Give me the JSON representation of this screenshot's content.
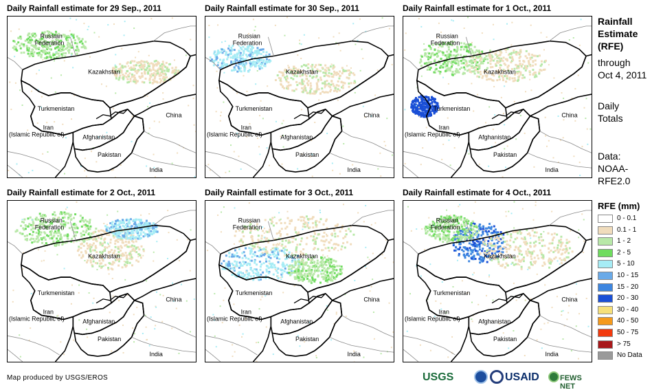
{
  "panels": [
    {
      "title": "Daily Rainfall estimate for 29 Sep., 2011",
      "variant": 0
    },
    {
      "title": "Daily Rainfall estimate for 30 Sep., 2011",
      "variant": 1
    },
    {
      "title": "Daily Rainfall estimate for 1 Oct., 2011",
      "variant": 2
    },
    {
      "title": "Daily Rainfall estimate for 2 Oct., 2011",
      "variant": 3
    },
    {
      "title": "Daily Rainfall estimate for 3 Oct., 2011",
      "variant": 4
    },
    {
      "title": "Daily Rainfall estimate for 4 Oct., 2011",
      "variant": 5
    }
  ],
  "labels": {
    "russia1": "Russian",
    "russia2": "Federation",
    "kazakhstan": "Kazakhstan",
    "turkmenistan": "Turkmenistan",
    "china": "China",
    "iran1": "Iran",
    "iran2": "(Islamic Republic of)",
    "afghanistan": "Afghanistan",
    "pakistan": "Pakistan",
    "india": "India"
  },
  "sidebar": {
    "title_line1": "Rainfall",
    "title_line2": "Estimate",
    "title_line3": "(RFE)",
    "through1": "through",
    "through2": "Oct 4, 2011",
    "daily1": "Daily",
    "daily2": "Totals",
    "data1": "Data:",
    "data2": "NOAA-",
    "data3": "RFE2.0"
  },
  "legend": {
    "title": "RFE (mm)",
    "items": [
      {
        "label": "0 - 0.1",
        "color": "#ffffff"
      },
      {
        "label": "0.1 - 1",
        "color": "#f0dcbc"
      },
      {
        "label": "1 - 2",
        "color": "#b8e8a8"
      },
      {
        "label": "2 - 5",
        "color": "#6fdc5f"
      },
      {
        "label": "5 - 10",
        "color": "#a6ecf5"
      },
      {
        "label": "10 - 15",
        "color": "#6aaae8"
      },
      {
        "label": "15 - 20",
        "color": "#3d86e0"
      },
      {
        "label": "20 - 30",
        "color": "#1a4fd6"
      },
      {
        "label": "30 - 40",
        "color": "#f6e07a"
      },
      {
        "label": "40 - 50",
        "color": "#f59a1c"
      },
      {
        "label": "50 - 75",
        "color": "#f23a0e"
      },
      {
        "label": "> 75",
        "color": "#a8181a"
      },
      {
        "label": "No Data",
        "color": "#9a9a9a"
      }
    ]
  },
  "footer": {
    "credit": "Map produced by USGS/EROS",
    "usgs": "USGS",
    "usaid": "USAID",
    "fews": "FEWS NET"
  }
}
